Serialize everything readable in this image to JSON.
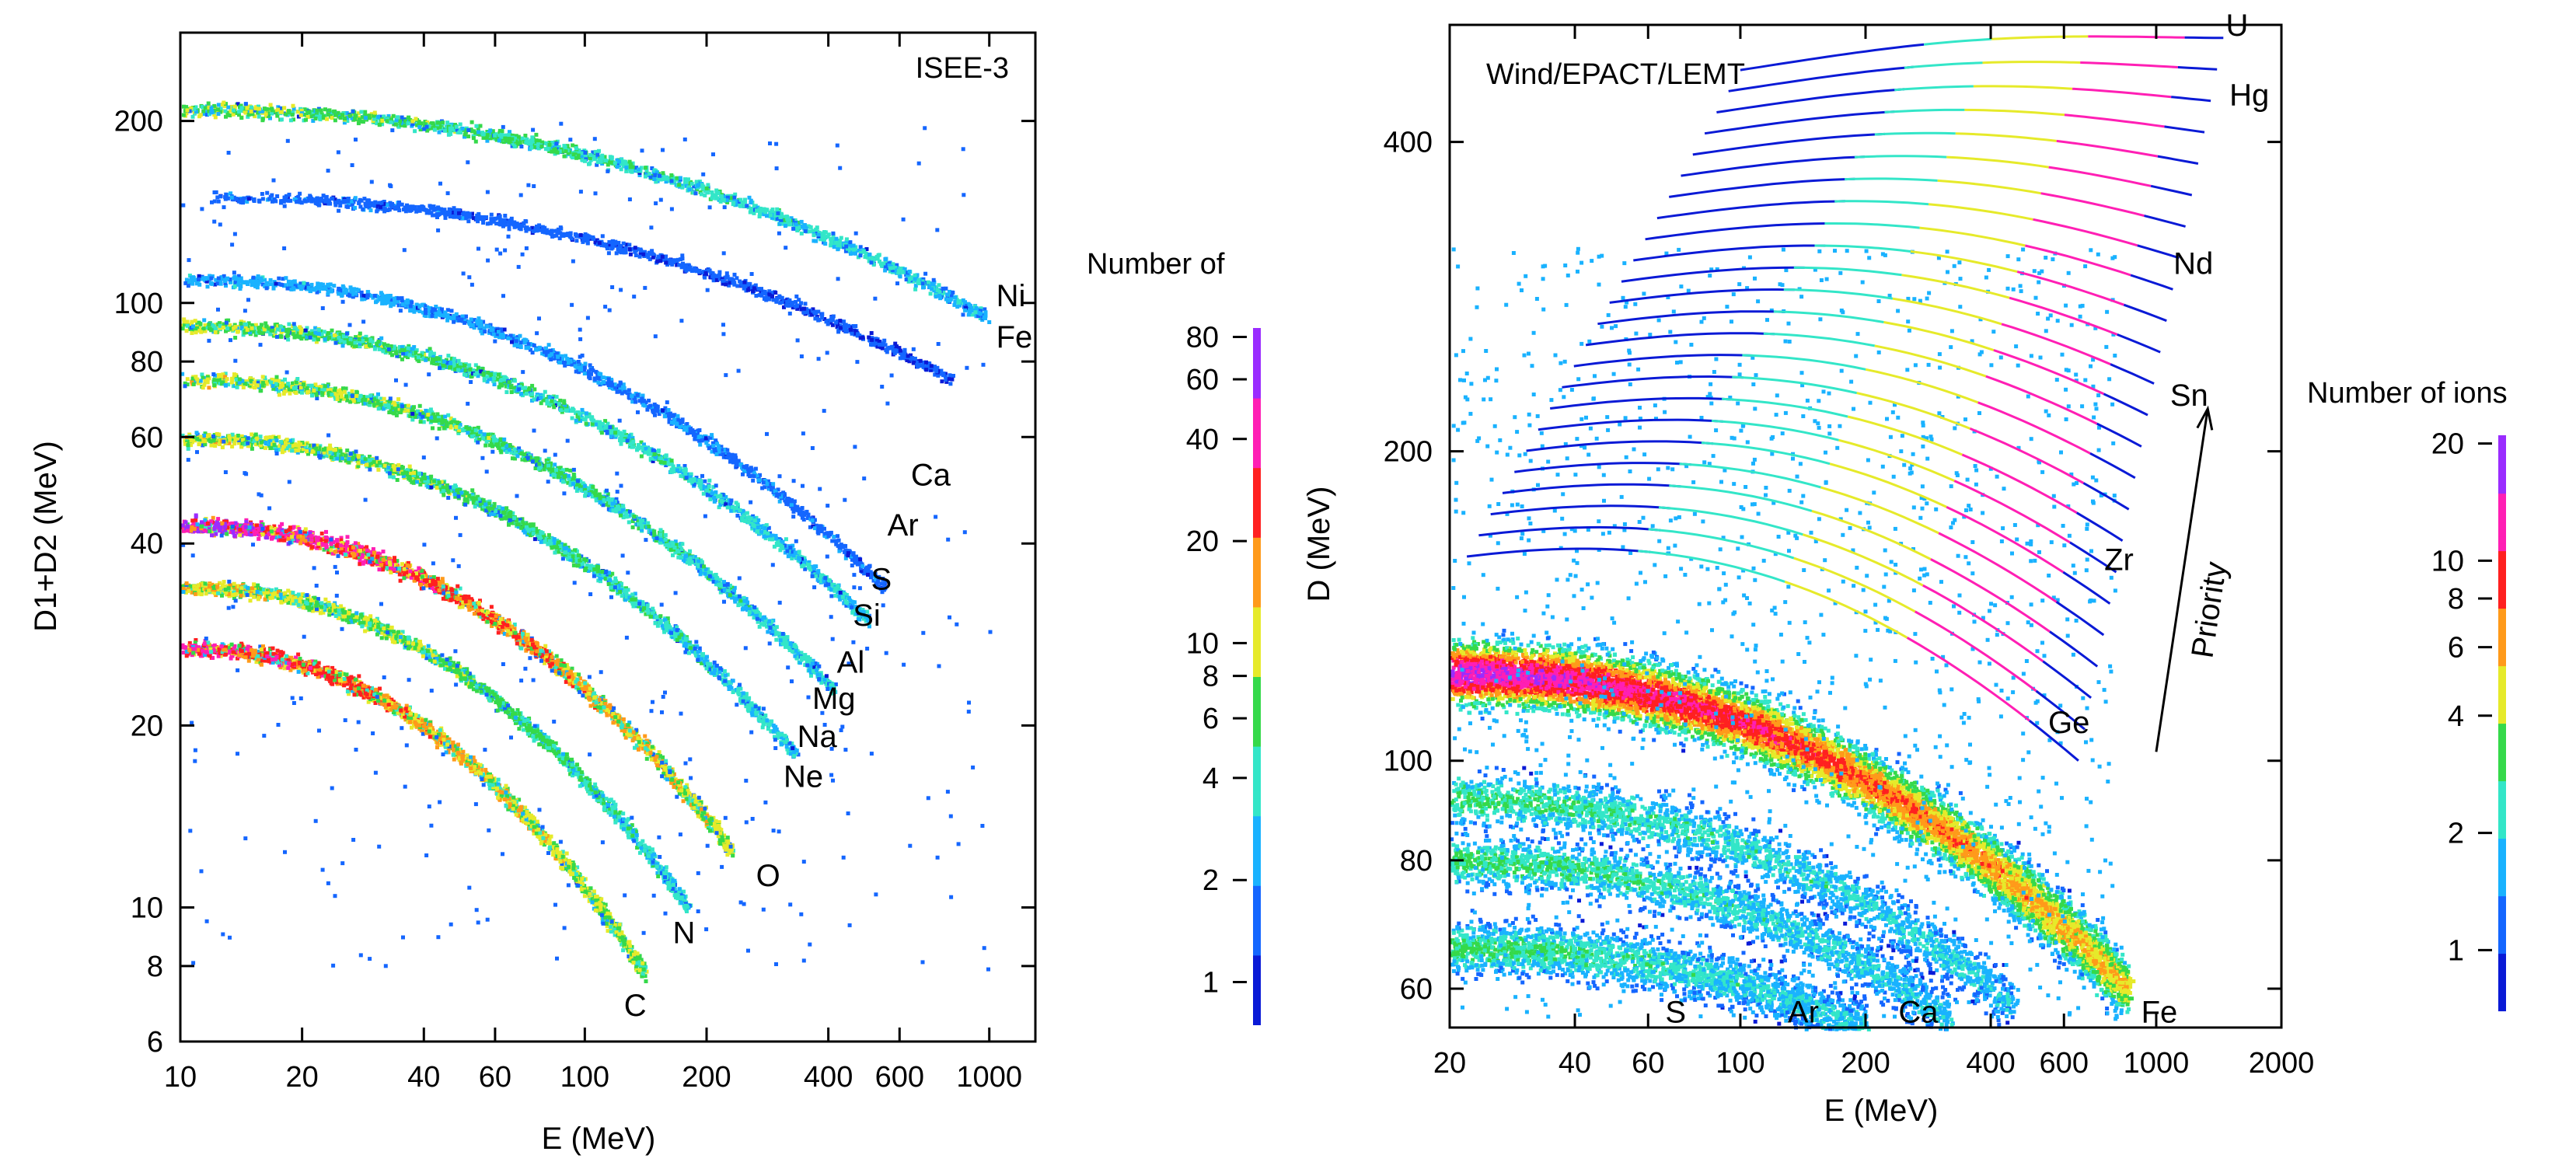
{
  "colors": {
    "ramp": [
      "#0a1ad6",
      "#1466ff",
      "#19b2ff",
      "#33e6c8",
      "#35d94a",
      "#e6ea2a",
      "#ff9a1a",
      "#ff2020",
      "#ff1fb4",
      "#9a2cff"
    ],
    "axis": "#000000",
    "background": "#ffffff"
  },
  "chart_data": [
    {
      "type": "heatmap",
      "title": "ISEE-3",
      "xlabel": "E (MeV)",
      "ylabel": "D1+D2 (MeV)",
      "x_scale": "log",
      "y_scale": "log",
      "xlim": [
        10,
        1300
      ],
      "ylim": [
        6,
        280
      ],
      "x_ticks": [
        {
          "value": 10,
          "label": "10"
        },
        {
          "value": 20,
          "label": "20"
        },
        {
          "value": 40,
          "label": "40"
        },
        {
          "value": 60,
          "label": "60"
        },
        {
          "value": 100,
          "label": "100"
        },
        {
          "value": 200,
          "label": "200"
        },
        {
          "value": 400,
          "label": "400"
        },
        {
          "value": 600,
          "label": "600"
        },
        {
          "value": 1000,
          "label": "1000"
        }
      ],
      "y_ticks": [
        {
          "value": 6,
          "label": "6"
        },
        {
          "value": 8,
          "label": "8"
        },
        {
          "value": 10,
          "label": "10"
        },
        {
          "value": 20,
          "label": "20"
        },
        {
          "value": 40,
          "label": "40"
        },
        {
          "value": 60,
          "label": "60"
        },
        {
          "value": 80,
          "label": "80"
        },
        {
          "value": 100,
          "label": "100"
        },
        {
          "value": 200,
          "label": "200"
        }
      ],
      "tracks": [
        {
          "element": "C",
          "e_start": 10,
          "d_start": 27,
          "e_end": 140,
          "d_end": 7.8,
          "peak": 0.85
        },
        {
          "element": "N",
          "e_start": 10,
          "d_start": 34,
          "e_end": 180,
          "d_end": 10,
          "peak": 0.6
        },
        {
          "element": "O",
          "e_start": 10,
          "d_start": 43,
          "e_end": 230,
          "d_end": 12.5,
          "peak": 0.95
        },
        {
          "element": "Ne",
          "e_start": 10,
          "d_start": 60,
          "e_end": 330,
          "d_end": 18,
          "peak": 0.55
        },
        {
          "element": "Mg",
          "e_start": 10,
          "d_start": 75,
          "e_end": 410,
          "d_end": 23,
          "peak": 0.55
        },
        {
          "element": "Si",
          "e_start": 10,
          "d_start": 92,
          "e_end": 500,
          "d_end": 30,
          "peak": 0.5
        },
        {
          "element": "S",
          "e_start": 10,
          "d_start": 110,
          "e_end": 550,
          "d_end": 34,
          "peak": 0.25
        },
        {
          "element": "Fe",
          "e_start": 10,
          "d_start": 210,
          "e_end": 980,
          "d_end": 95,
          "peak": 0.5
        },
        {
          "element": "Ni",
          "e_start": 12,
          "d_start": 150,
          "e_end": 800,
          "d_end": 75,
          "peak": 0.15
        }
      ],
      "annotations": [
        {
          "text": "C",
          "e": 125,
          "d": 6.9
        },
        {
          "text": "N",
          "e": 165,
          "d": 9.1
        },
        {
          "text": "O",
          "e": 265,
          "d": 11.3
        },
        {
          "text": "Ne",
          "e": 310,
          "d": 16.5
        },
        {
          "text": "Na",
          "e": 335,
          "d": 19.2
        },
        {
          "text": "Mg",
          "e": 365,
          "d": 22.2
        },
        {
          "text": "Al",
          "e": 420,
          "d": 25.5
        },
        {
          "text": "Si",
          "e": 460,
          "d": 30.5
        },
        {
          "text": "S",
          "e": 510,
          "d": 35
        },
        {
          "text": "Ar",
          "e": 560,
          "d": 43
        },
        {
          "text": "Ca",
          "e": 640,
          "d": 52
        },
        {
          "text": "Fe",
          "e": 1040,
          "d": 88
        },
        {
          "text": "Ni",
          "e": 1040,
          "d": 103
        }
      ]
    },
    {
      "type": "heatmap",
      "title": "Wind/EPACT/LEMT",
      "xlabel": "E (MeV)",
      "ylabel": "D (MeV)",
      "x_scale": "log",
      "y_scale": "log",
      "xlim": [
        20,
        2000
      ],
      "ylim": [
        55,
        520
      ],
      "x_ticks": [
        {
          "value": 20,
          "label": "20"
        },
        {
          "value": 40,
          "label": "40"
        },
        {
          "value": 60,
          "label": "60"
        },
        {
          "value": 100,
          "label": "100"
        },
        {
          "value": 200,
          "label": "200"
        },
        {
          "value": 400,
          "label": "400"
        },
        {
          "value": 600,
          "label": "600"
        },
        {
          "value": 1000,
          "label": "1000"
        },
        {
          "value": 2000,
          "label": "2000"
        }
      ],
      "y_ticks": [
        {
          "value": 60,
          "label": "60"
        },
        {
          "value": 80,
          "label": "80"
        },
        {
          "value": 100,
          "label": "100"
        },
        {
          "value": 200,
          "label": "200"
        },
        {
          "value": 400,
          "label": "400"
        }
      ],
      "band": {
        "element": "Fe",
        "e_start": 20,
        "d_start": 122,
        "e_end": 850,
        "d_end": 60
      },
      "bands_low": [
        {
          "element": "Ca",
          "e_start": 20,
          "d_start": 92,
          "e_end": 450,
          "d_end": 58
        },
        {
          "element": "Ar",
          "e_start": 20,
          "d_start": 80,
          "e_end": 320,
          "d_end": 56
        },
        {
          "element": "S",
          "e_start": 20,
          "d_start": 66,
          "e_end": 200,
          "d_end": 55
        }
      ],
      "tracks_count": 24,
      "tracks_e_start": [
        22,
        100
      ],
      "tracks_d_start": [
        158,
        470
      ],
      "tracks_e_end": [
        650,
        1450
      ],
      "tracks_d_end": [
        100,
        505
      ],
      "priority_arrow": {
        "label": "Priority",
        "e_start": 1000,
        "d_start": 102,
        "e_end": 1330,
        "d_end": 220
      },
      "annotations": [
        {
          "text": "S",
          "e": 66,
          "d": 57
        },
        {
          "text": "Ar",
          "e": 130,
          "d": 57
        },
        {
          "text": "Ca",
          "e": 240,
          "d": 57
        },
        {
          "text": "Fe",
          "e": 920,
          "d": 57
        },
        {
          "text": "Ge",
          "e": 550,
          "d": 109
        },
        {
          "text": "Zr",
          "e": 750,
          "d": 157
        },
        {
          "text": "Sn",
          "e": 1080,
          "d": 227
        },
        {
          "text": "Nd",
          "e": 1100,
          "d": 305
        },
        {
          "text": "Hg",
          "e": 1500,
          "d": 445
        },
        {
          "text": "U",
          "e": 1470,
          "d": 520
        }
      ]
    }
  ],
  "colorbars": [
    {
      "title": "Number of",
      "min": 0.75,
      "max": 85,
      "ticks": [
        {
          "value": 1,
          "label": "1"
        },
        {
          "value": 2,
          "label": "2"
        },
        {
          "value": 4,
          "label": "4"
        },
        {
          "value": 6,
          "label": "6"
        },
        {
          "value": 8,
          "label": "8"
        },
        {
          "value": 10,
          "label": "10"
        },
        {
          "value": 20,
          "label": "20"
        },
        {
          "value": 40,
          "label": "40"
        },
        {
          "value": 60,
          "label": "60"
        },
        {
          "value": 80,
          "label": "80"
        }
      ]
    },
    {
      "title": "Number of ions",
      "min": 0.7,
      "max": 21,
      "ticks": [
        {
          "value": 1,
          "label": "1"
        },
        {
          "value": 2,
          "label": "2"
        },
        {
          "value": 4,
          "label": "4"
        },
        {
          "value": 6,
          "label": "6"
        },
        {
          "value": 8,
          "label": "8"
        },
        {
          "value": 10,
          "label": "10"
        },
        {
          "value": 20,
          "label": "20"
        }
      ]
    }
  ]
}
